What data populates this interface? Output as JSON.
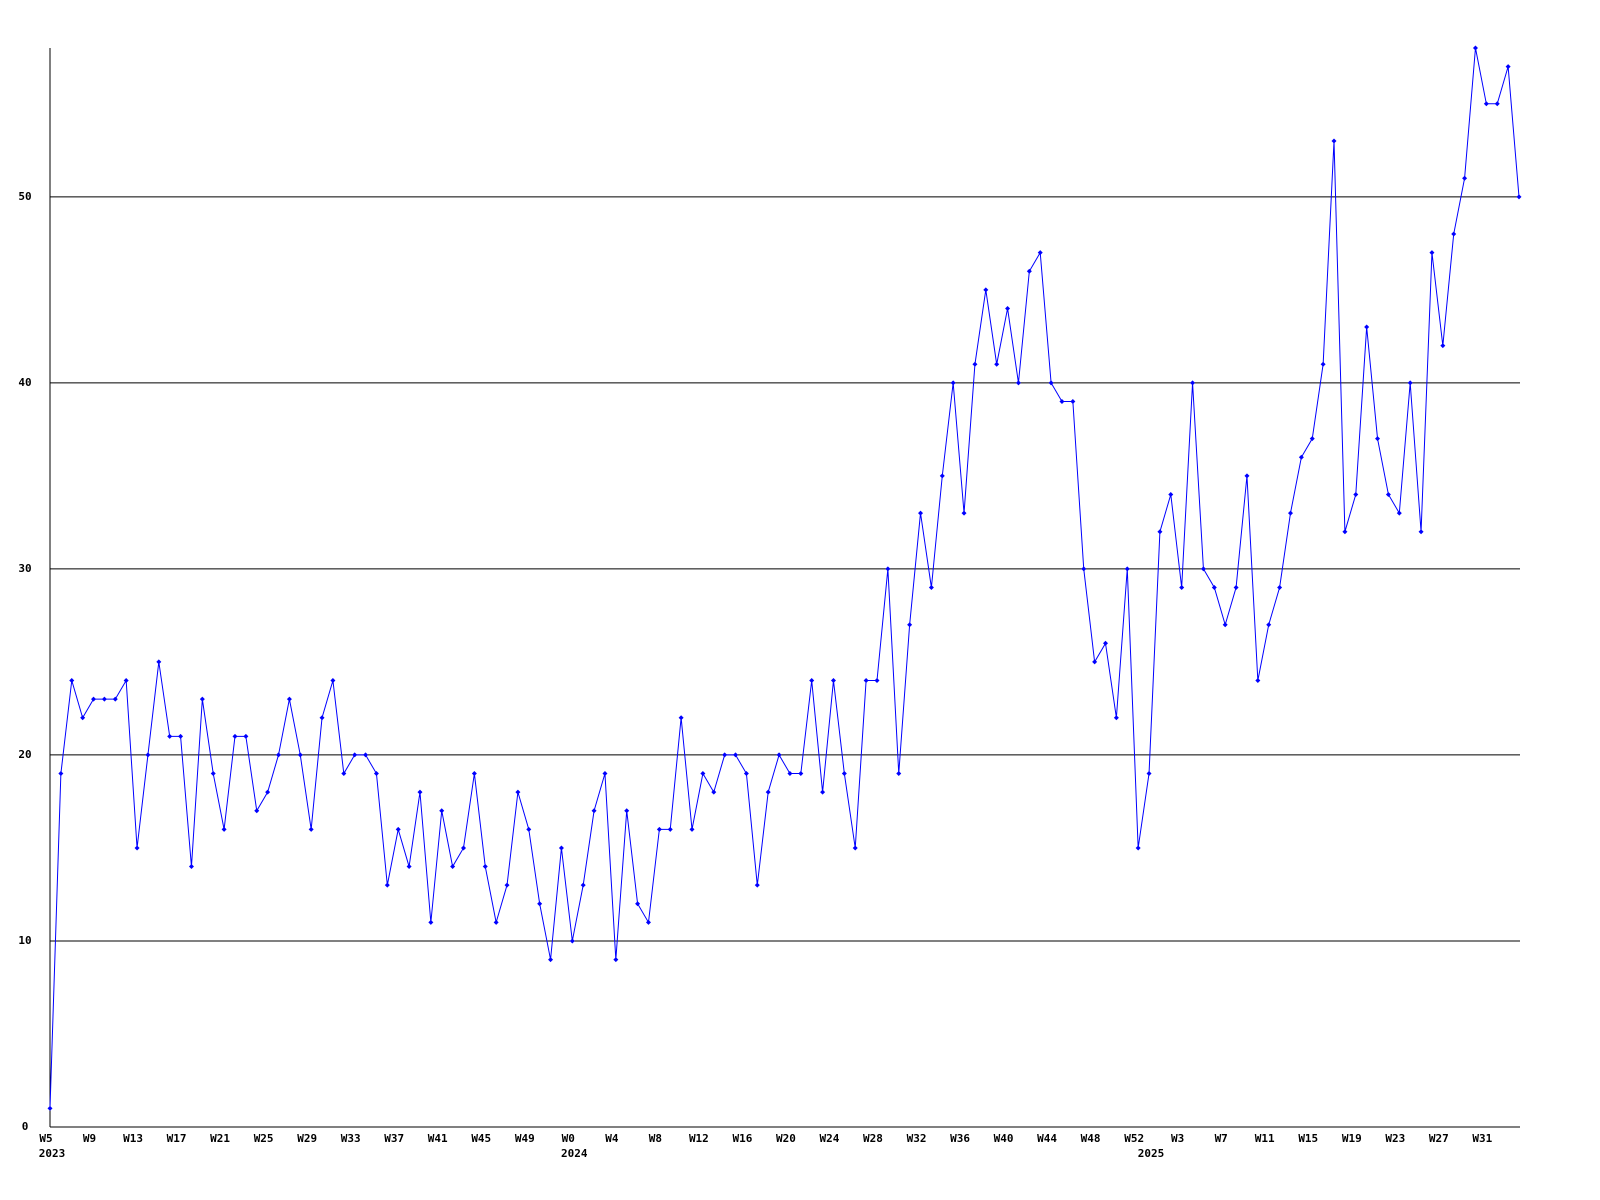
{
  "chart_data": {
    "type": "line",
    "categories": [
      "W5",
      null,
      null,
      null,
      "W9",
      null,
      null,
      null,
      "W13",
      null,
      null,
      null,
      "W17",
      null,
      null,
      null,
      "W21",
      null,
      null,
      null,
      "W25",
      null,
      null,
      null,
      "W29",
      null,
      null,
      null,
      "W33",
      null,
      null,
      null,
      "W37",
      null,
      null,
      null,
      "W41",
      null,
      null,
      null,
      "W45",
      null,
      null,
      null,
      "W49",
      null,
      null,
      null,
      "W0",
      null,
      null,
      null,
      "W4",
      null,
      null,
      null,
      "W8",
      null,
      null,
      null,
      "W12",
      null,
      null,
      null,
      "W16",
      null,
      null,
      null,
      "W20",
      null,
      null,
      null,
      "W24",
      null,
      null,
      null,
      "W28",
      null,
      null,
      null,
      "W32",
      null,
      null,
      null,
      "W36",
      null,
      null,
      null,
      "W40",
      null,
      null,
      null,
      "W44",
      null,
      null,
      null,
      "W48",
      null,
      null,
      null,
      "W52",
      null,
      null,
      null,
      "W3",
      null,
      null,
      null,
      "W7",
      null,
      null,
      null,
      "W11",
      null,
      null,
      null,
      "W15",
      null,
      null,
      null,
      "W19",
      null,
      null,
      null,
      "W23",
      null,
      null,
      null,
      "W27",
      null,
      null,
      null,
      "W31",
      null,
      null,
      null
    ],
    "years": [
      "2023",
      null,
      null,
      null,
      null,
      null,
      null,
      null,
      null,
      null,
      null,
      null,
      null,
      null,
      null,
      null,
      null,
      null,
      null,
      null,
      null,
      null,
      null,
      null,
      null,
      null,
      null,
      null,
      null,
      null,
      null,
      null,
      null,
      null,
      null,
      null,
      null,
      null,
      null,
      null,
      null,
      null,
      null,
      null,
      null,
      null,
      null,
      null,
      "2024",
      null,
      null,
      null,
      null,
      null,
      null,
      null,
      null,
      null,
      null,
      null,
      null,
      null,
      null,
      null,
      null,
      null,
      null,
      null,
      null,
      null,
      null,
      null,
      null,
      null,
      null,
      null,
      null,
      null,
      null,
      null,
      null,
      null,
      null,
      null,
      null,
      null,
      null,
      null,
      null,
      null,
      null,
      null,
      null,
      null,
      null,
      null,
      null,
      null,
      null,
      null,
      null,
      "2025",
      null,
      null,
      null,
      null,
      null,
      null,
      null,
      null,
      null,
      null,
      null,
      null,
      null,
      null,
      null,
      null,
      null,
      null,
      null,
      null,
      null,
      null,
      null,
      null,
      null,
      null,
      null,
      null,
      null,
      null,
      null,
      null,
      null,
      null
    ],
    "series": [
      {
        "color": "#0000ff",
        "values": [
          1,
          19,
          24,
          22,
          23,
          23,
          23,
          24,
          15,
          20,
          25,
          21,
          21,
          14,
          23,
          19,
          16,
          21,
          21,
          17,
          18,
          20,
          23,
          20,
          16,
          22,
          24,
          19,
          20,
          20,
          19,
          13,
          16,
          14,
          18,
          11,
          17,
          14,
          15,
          19,
          14,
          11,
          13,
          18,
          16,
          12,
          9,
          15,
          10,
          13,
          17,
          19,
          9,
          17,
          12,
          11,
          16,
          16,
          22,
          16,
          19,
          18,
          20,
          20,
          19,
          13,
          18,
          20,
          19,
          19,
          24,
          18,
          24,
          19,
          15,
          24,
          24,
          30,
          19,
          27,
          33,
          29,
          35,
          40,
          33,
          41,
          45,
          41,
          44,
          40,
          46,
          47,
          40,
          39,
          39,
          30,
          25,
          26,
          22,
          30,
          15,
          19,
          32,
          34,
          29,
          40,
          30,
          29,
          27,
          29,
          35,
          24,
          27,
          29,
          33,
          36,
          37,
          41,
          53,
          32,
          34,
          43,
          37,
          34,
          33,
          40,
          32,
          47,
          42,
          48,
          51,
          58,
          55,
          55,
          57,
          50
        ]
      }
    ],
    "ylim": [
      0,
      58
    ],
    "yticks": [
      0,
      10,
      20,
      30,
      40,
      50
    ],
    "grid": true
  }
}
